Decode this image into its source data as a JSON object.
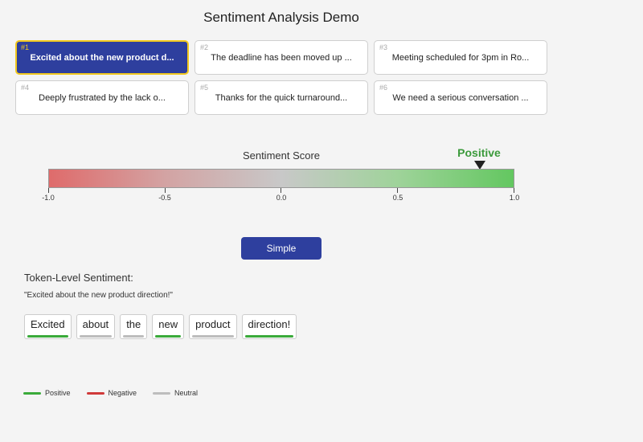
{
  "title": "Sentiment Analysis Demo",
  "examples": [
    {
      "num": "#1",
      "text": "Excited about the new product d...",
      "selected": true
    },
    {
      "num": "#2",
      "text": "The deadline has been moved up ...",
      "selected": false
    },
    {
      "num": "#3",
      "text": "Meeting scheduled for 3pm in Ro...",
      "selected": false
    },
    {
      "num": "#4",
      "text": "Deeply frustrated by the lack o...",
      "selected": false
    },
    {
      "num": "#5",
      "text": "Thanks for the quick turnaround...",
      "selected": false
    },
    {
      "num": "#6",
      "text": "We need a serious conversation ...",
      "selected": false
    }
  ],
  "score": {
    "label": "Sentiment Score",
    "value": 0.85,
    "sentiment_label": "Positive",
    "min": -1.0,
    "max": 1.0,
    "ticks": [
      "-1.0",
      "-0.5",
      "0.0",
      "0.5",
      "1.0"
    ]
  },
  "mode_button": {
    "label": "Simple"
  },
  "tokens_section": {
    "heading": "Token-Level Sentiment:",
    "sentence": "\"Excited about the new product direction!\"",
    "tokens": [
      {
        "text": "Excited",
        "sentiment": "positive"
      },
      {
        "text": "about",
        "sentiment": "neutral"
      },
      {
        "text": "the",
        "sentiment": "neutral"
      },
      {
        "text": "new",
        "sentiment": "positive"
      },
      {
        "text": "product",
        "sentiment": "neutral"
      },
      {
        "text": "direction!",
        "sentiment": "positive"
      }
    ]
  },
  "legend": [
    {
      "key": "positive",
      "label": "Positive"
    },
    {
      "key": "negative",
      "label": "Negative"
    },
    {
      "key": "neutral",
      "label": "Neutral"
    }
  ],
  "colors": {
    "positive": "#3aaa3a",
    "negative": "#d03a3a",
    "neutral": "#bdbdbd",
    "accent": "#2e3f9e",
    "highlight": "#f2c81e"
  }
}
